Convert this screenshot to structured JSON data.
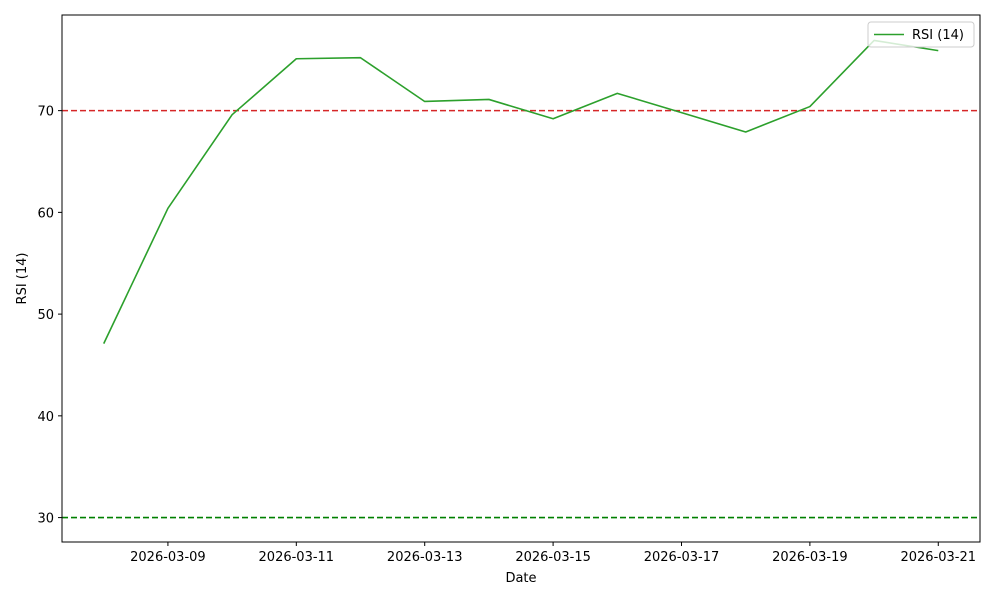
{
  "chart_data": {
    "type": "line",
    "title": "",
    "xlabel": "Date",
    "ylabel": "RSI (14)",
    "x": [
      "2026-03-08",
      "2026-03-09",
      "2026-03-10",
      "2026-03-11",
      "2026-03-12",
      "2026-03-13",
      "2026-03-14",
      "2026-03-15",
      "2026-03-16",
      "2026-03-17",
      "2026-03-18",
      "2026-03-19",
      "2026-03-20",
      "2026-03-21"
    ],
    "series": [
      {
        "name": "RSI (14)",
        "color": "#2ca02c",
        "values": [
          47.1,
          60.4,
          69.6,
          75.1,
          75.2,
          70.9,
          71.1,
          69.2,
          71.7,
          69.8,
          67.9,
          70.4,
          76.9,
          75.9
        ]
      }
    ],
    "reference_lines": [
      {
        "y": 70,
        "color": "#d62728",
        "style": "dashed"
      },
      {
        "y": 30,
        "color": "#008000",
        "style": "dashed"
      }
    ],
    "xlim": [
      "2026-03-07T08:24",
      "2026-03-21T15:36"
    ],
    "ylim": [
      27.6,
      79.4
    ],
    "xticks": [
      "2026-03-09",
      "2026-03-11",
      "2026-03-13",
      "2026-03-15",
      "2026-03-17",
      "2026-03-19",
      "2026-03-21"
    ],
    "yticks": [
      30,
      40,
      50,
      60,
      70
    ],
    "grid": false,
    "legend": "top-right"
  }
}
